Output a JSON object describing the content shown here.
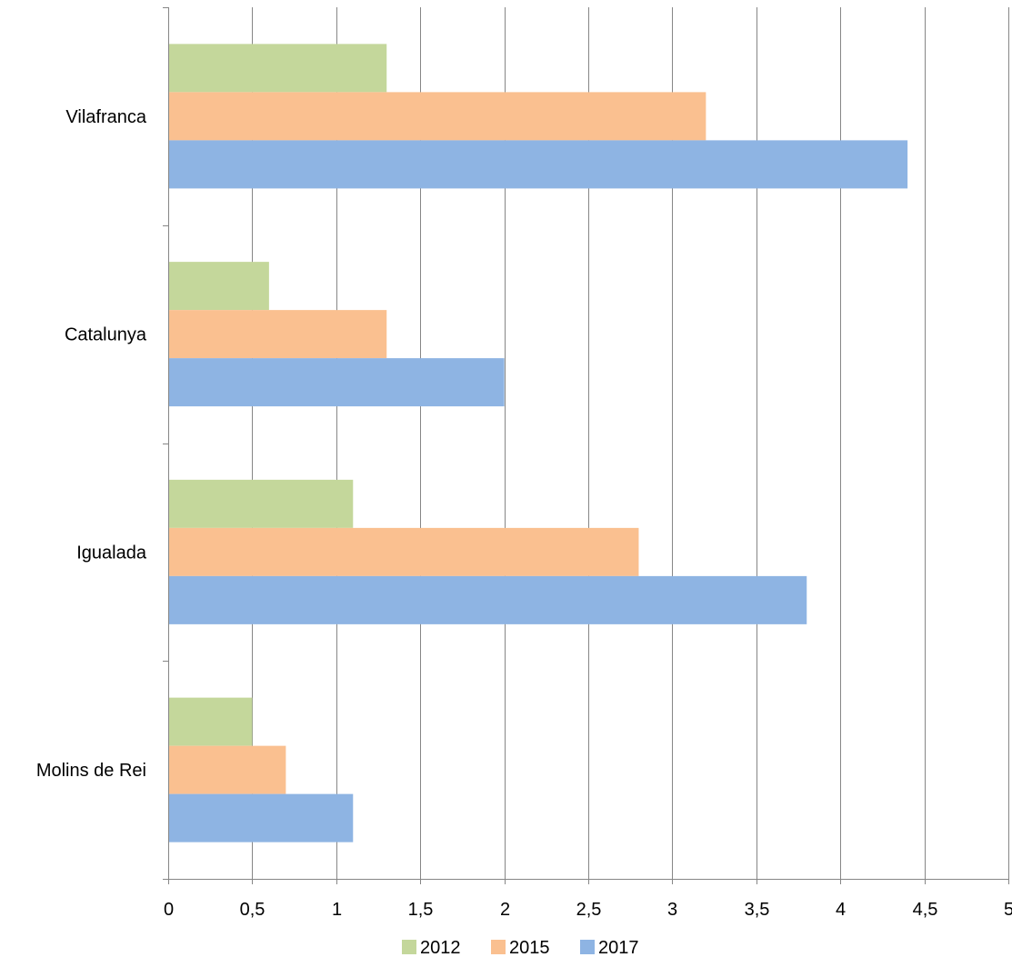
{
  "chart_data": {
    "type": "bar",
    "orientation": "horizontal",
    "title": "",
    "xlabel": "",
    "ylabel": "",
    "categories": [
      "Vilafranca",
      "Catalunya",
      "Igualada",
      "Molins de Rei"
    ],
    "series": [
      {
        "name": "2012",
        "color": "#c4d79b",
        "values": [
          1.3,
          0.6,
          1.1,
          0.5
        ]
      },
      {
        "name": "2015",
        "color": "#fac090",
        "values": [
          3.2,
          1.3,
          2.8,
          0.7
        ]
      },
      {
        "name": "2017",
        "color": "#8eb4e3",
        "values": [
          4.4,
          2.0,
          3.8,
          1.1
        ]
      }
    ],
    "xlim": [
      0,
      5
    ],
    "xticks": [
      0,
      0.5,
      1,
      1.5,
      2,
      2.5,
      3,
      3.5,
      4,
      4.5,
      5
    ],
    "xtick_labels": [
      "0",
      "0,5",
      "1",
      "1,5",
      "2",
      "2,5",
      "3",
      "3,5",
      "4",
      "4,5",
      "5"
    ],
    "grid": true,
    "legend_position": "bottom"
  }
}
